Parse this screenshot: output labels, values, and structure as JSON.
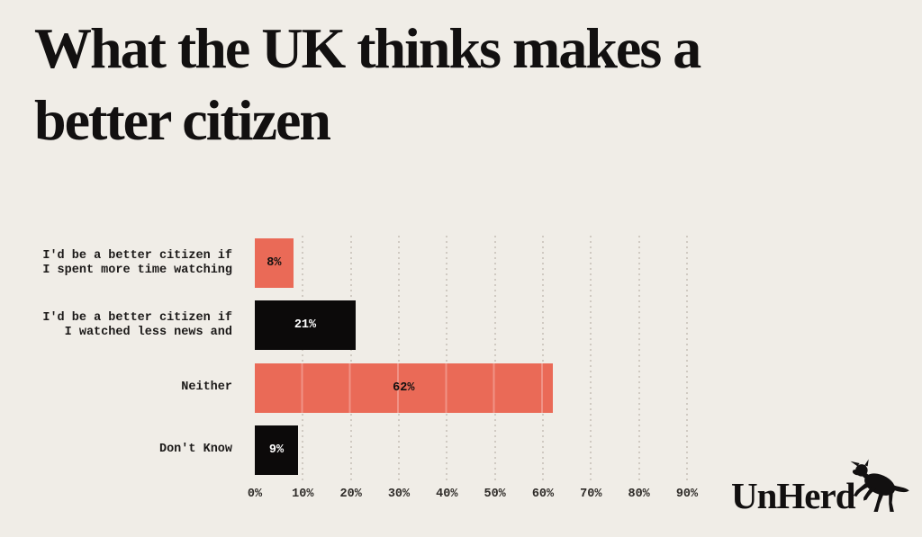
{
  "page": {
    "background_color": "#f0ede7",
    "accent_color": "#ea6a57",
    "ink_color": "#121010"
  },
  "title": {
    "text": "What the UK thinks makes a better citizen",
    "lines": [
      "What the UK thinks makes a",
      "better citizen"
    ]
  },
  "chart_data": {
    "type": "bar",
    "orientation": "horizontal",
    "title": "What the UK thinks makes a better citizen",
    "categories": [
      "I'd be a better citizen if I spent more time watching",
      "I'd be a better citizen if I watched less news and",
      "Neither",
      "Don't Know"
    ],
    "category_lines": [
      [
        "I'd be a better citizen if",
        "I spent more time watching"
      ],
      [
        "I'd be a better citizen if",
        "I watched less news and"
      ],
      [
        "Neither"
      ],
      [
        "Don't Know"
      ]
    ],
    "values": [
      8,
      21,
      62,
      9
    ],
    "value_labels": [
      "8%",
      "21%",
      "62%",
      "9%"
    ],
    "bar_colors": [
      "#ea6a57",
      "#0c0a0a",
      "#ea6a57",
      "#0c0a0a"
    ],
    "value_label_colors": [
      "#121010",
      "#ffffff",
      "#121010",
      "#ffffff"
    ],
    "x_ticks": [
      "0%",
      "10%",
      "20%",
      "30%",
      "40%",
      "50%",
      "60%",
      "70%",
      "80%",
      "90%"
    ],
    "xlim": [
      0,
      90
    ],
    "grid": "vertical-dotted",
    "gridline_color": "#d0cac2",
    "legend": "none"
  },
  "branding": {
    "logo_text": "UnHerd",
    "logo_icon": "rearing-cow"
  }
}
